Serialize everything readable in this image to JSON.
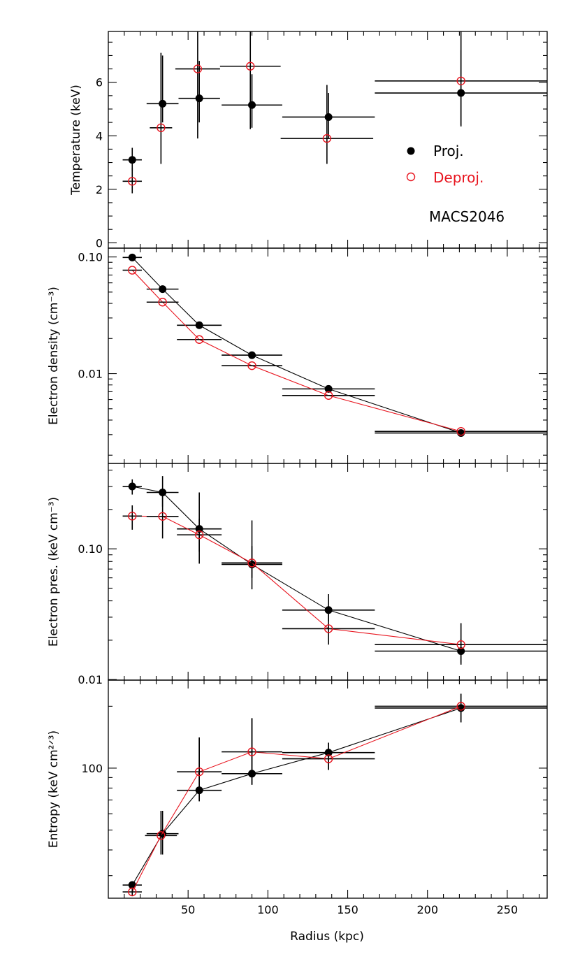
{
  "chart_data": {
    "type": "scatter",
    "title": "",
    "annotation": "MACS2046",
    "xlabel": "Radius (kpc)",
    "xlim": [
      0,
      275
    ],
    "xticks": [
      50,
      100,
      150,
      200,
      250
    ],
    "legend": {
      "placement": "right-center (top panel)",
      "entries": [
        {
          "label": "Proj.",
          "color": "#000000",
          "marker": "filled-circle"
        },
        {
          "label": "Deproj.",
          "color": "#e8141e",
          "marker": "open-circle"
        }
      ]
    },
    "panels": [
      {
        "id": "temperature",
        "ylabel": "Temperature (keV)",
        "yscale": "linear",
        "ylim": [
          -0.2,
          7.9
        ],
        "yticks": [
          {
            "v": 0,
            "label": "0"
          },
          {
            "v": 2,
            "label": "2"
          },
          {
            "v": 4,
            "label": "4"
          },
          {
            "v": 6,
            "label": "6"
          }
        ],
        "connect": false,
        "series": [
          {
            "name": "Proj.",
            "points": [
              {
                "x": 15,
                "xerr": [
                  6,
                  6
                ],
                "y": 3.1,
                "yerr": [
                  2.7,
                  3.55
                ]
              },
              {
                "x": 34,
                "xerr": [
                  10,
                  10
                ],
                "y": 5.2,
                "yerr": [
                  4.5,
                  7.0
                ]
              },
              {
                "x": 57,
                "xerr": [
                  13,
                  13
                ],
                "y": 5.4,
                "yerr": [
                  4.5,
                  6.8
                ]
              },
              {
                "x": 90,
                "xerr": [
                  19,
                  19
                ],
                "y": 5.15,
                "yerr": [
                  4.3,
                  6.3
                ]
              },
              {
                "x": 138,
                "xerr": [
                  29,
                  29
                ],
                "y": 4.7,
                "yerr": [
                  3.9,
                  5.6
                ]
              },
              {
                "x": 221,
                "xerr": [
                  54,
                  54
                ],
                "y": 5.6,
                "yerr": [
                  4.4,
                  7.2
                ]
              }
            ]
          },
          {
            "name": "Deproj.",
            "points": [
              {
                "x": 15,
                "xerr": [
                  6,
                  6
                ],
                "y": 2.3,
                "yerr": [
                  1.85,
                  2.8
                ]
              },
              {
                "x": 33,
                "xerr": [
                  7,
                  7
                ],
                "y": 4.3,
                "yerr": [
                  2.95,
                  7.1
                ]
              },
              {
                "x": 56,
                "xerr": [
                  14,
                  14
                ],
                "y": 6.5,
                "yerr": [
                  3.9,
                  7.9
                ]
              },
              {
                "x": 89,
                "xerr": [
                  19,
                  19
                ],
                "y": 6.6,
                "yerr": [
                  4.25,
                  7.9
                ]
              },
              {
                "x": 137,
                "xerr": [
                  29,
                  29
                ],
                "y": 3.9,
                "yerr": [
                  2.95,
                  5.9
                ]
              },
              {
                "x": 221,
                "xerr": [
                  54,
                  54
                ],
                "y": 6.05,
                "yerr": [
                  4.35,
                  7.9
                ]
              }
            ]
          }
        ]
      },
      {
        "id": "density",
        "ylabel": "Electron density (cm⁻³)",
        "yscale": "log",
        "ylim": [
          0.0017,
          0.119
        ],
        "yticks": [
          {
            "v": 0.01,
            "label": "0.01"
          },
          {
            "v": 0.1,
            "label": "0.10"
          }
        ],
        "connect": true,
        "series": [
          {
            "name": "Proj.",
            "points": [
              {
                "x": 15,
                "xerr": [
                  6,
                  6
                ],
                "y": 0.099
              },
              {
                "x": 34,
                "xerr": [
                  10,
                  10
                ],
                "y": 0.053
              },
              {
                "x": 57,
                "xerr": [
                  14,
                  14
                ],
                "y": 0.026
              },
              {
                "x": 90,
                "xerr": [
                  19,
                  19
                ],
                "y": 0.0144
              },
              {
                "x": 138,
                "xerr": [
                  29,
                  29
                ],
                "y": 0.0074
              },
              {
                "x": 221,
                "xerr": [
                  54,
                  54
                ],
                "y": 0.0031
              }
            ]
          },
          {
            "name": "Deproj.",
            "points": [
              {
                "x": 15,
                "xerr": [
                  6,
                  6
                ],
                "y": 0.077
              },
              {
                "x": 34,
                "xerr": [
                  10,
                  10
                ],
                "y": 0.041
              },
              {
                "x": 57,
                "xerr": [
                  14,
                  14
                ],
                "y": 0.0196
              },
              {
                "x": 90,
                "xerr": [
                  19,
                  19
                ],
                "y": 0.0117
              },
              {
                "x": 138,
                "xerr": [
                  29,
                  29
                ],
                "y": 0.0065
              },
              {
                "x": 221,
                "xerr": [
                  54,
                  54
                ],
                "y": 0.0032
              }
            ]
          }
        ]
      },
      {
        "id": "pressure",
        "ylabel": "Electron pres. (keV cm⁻³)",
        "yscale": "log",
        "ylim": [
          0.0099,
          0.45
        ],
        "yticks": [
          {
            "v": 0.01,
            "label": "0.01"
          },
          {
            "v": 0.1,
            "label": "0.10"
          }
        ],
        "connect": true,
        "series": [
          {
            "name": "Proj.",
            "points": [
              {
                "x": 15,
                "xerr": [
                  6,
                  6
                ],
                "y": 0.3,
                "yerr": [
                  0.26,
                  0.34
                ]
              },
              {
                "x": 34,
                "xerr": [
                  10,
                  10
                ],
                "y": 0.27,
                "yerr": [
                  0.21,
                  0.36
                ]
              },
              {
                "x": 57,
                "xerr": [
                  14,
                  14
                ],
                "y": 0.142,
                "yerr": [
                  0.077,
                  0.27
                ]
              },
              {
                "x": 90,
                "xerr": [
                  19,
                  19
                ],
                "y": 0.076,
                "yerr": [
                  0.049,
                  0.165
                ]
              },
              {
                "x": 138,
                "xerr": [
                  29,
                  29
                ],
                "y": 0.034,
                "yerr": [
                  0.028,
                  0.045
                ]
              },
              {
                "x": 221,
                "xerr": [
                  54,
                  54
                ],
                "y": 0.0165,
                "yerr": [
                  0.0135,
                  0.0205
                ]
              }
            ]
          },
          {
            "name": "Deproj.",
            "points": [
              {
                "x": 15,
                "xerr": [
                  6,
                  6
                ],
                "y": 0.178,
                "yerr": [
                  0.14,
                  0.215
                ]
              },
              {
                "x": 34,
                "xerr": [
                  10,
                  10
                ],
                "y": 0.177,
                "yerr": [
                  0.12,
                  0.255
                ]
              },
              {
                "x": 57,
                "xerr": [
                  14,
                  14
                ],
                "y": 0.128,
                "yerr": [
                  0.095,
                  0.17
                ]
              },
              {
                "x": 90,
                "xerr": [
                  19,
                  19
                ],
                "y": 0.078,
                "yerr": [
                  0.06,
                  0.105
                ]
              },
              {
                "x": 138,
                "xerr": [
                  29,
                  29
                ],
                "y": 0.0245,
                "yerr": [
                  0.0185,
                  0.032
                ]
              },
              {
                "x": 221,
                "xerr": [
                  54,
                  54
                ],
                "y": 0.0185,
                "yerr": [
                  0.013,
                  0.027
                ]
              }
            ]
          }
        ]
      },
      {
        "id": "entropy",
        "ylabel": "Entropy (keV cm²ᐟ³)",
        "yscale": "log",
        "ylim": [
          23.3,
          268
        ],
        "yticks": [
          {
            "v": 100,
            "label": "100"
          }
        ],
        "connect": true,
        "series": [
          {
            "name": "Proj.",
            "points": [
              {
                "x": 15,
                "xerr": [
                  6,
                  6
                ],
                "y": 27,
                "yerr": [
                  26,
                  28
                ]
              },
              {
                "x": 34,
                "xerr": [
                  10,
                  10
                ],
                "y": 48,
                "yerr": [
                  38,
                  62
                ]
              },
              {
                "x": 57,
                "xerr": [
                  14,
                  14
                ],
                "y": 78,
                "yerr": [
                  69,
                  141
                ]
              },
              {
                "x": 90,
                "xerr": [
                  19,
                  19
                ],
                "y": 94,
                "yerr": [
                  83,
                  175
                ]
              },
              {
                "x": 138,
                "xerr": [
                  29,
                  29
                ],
                "y": 119,
                "yerr": [
                  98,
                  133
                ]
              },
              {
                "x": 221,
                "xerr": [
                  54,
                  54
                ],
                "y": 196,
                "yerr": [
                  167,
                  230
                ]
              }
            ]
          },
          {
            "name": "Deproj.",
            "points": [
              {
                "x": 15,
                "xerr": [
                  6,
                  6
                ],
                "y": 25,
                "yerr": [
                  24,
                  26
                ]
              },
              {
                "x": 33,
                "xerr": [
                  10,
                  10
                ],
                "y": 47,
                "yerr": [
                  38,
                  62
                ]
              },
              {
                "x": 57,
                "xerr": [
                  14,
                  14
                ],
                "y": 96,
                "yerr": [
                  69,
                  141
                ]
              },
              {
                "x": 90,
                "xerr": [
                  19,
                  19
                ],
                "y": 120,
                "yerr": [
                  83,
                  175
                ]
              },
              {
                "x": 138,
                "xerr": [
                  29,
                  29
                ],
                "y": 111,
                "yerr": [
                  98,
                  133
                ]
              },
              {
                "x": 221,
                "xerr": [
                  54,
                  54
                ],
                "y": 200,
                "yerr": [
                  167,
                  230
                ]
              }
            ]
          }
        ]
      }
    ]
  }
}
